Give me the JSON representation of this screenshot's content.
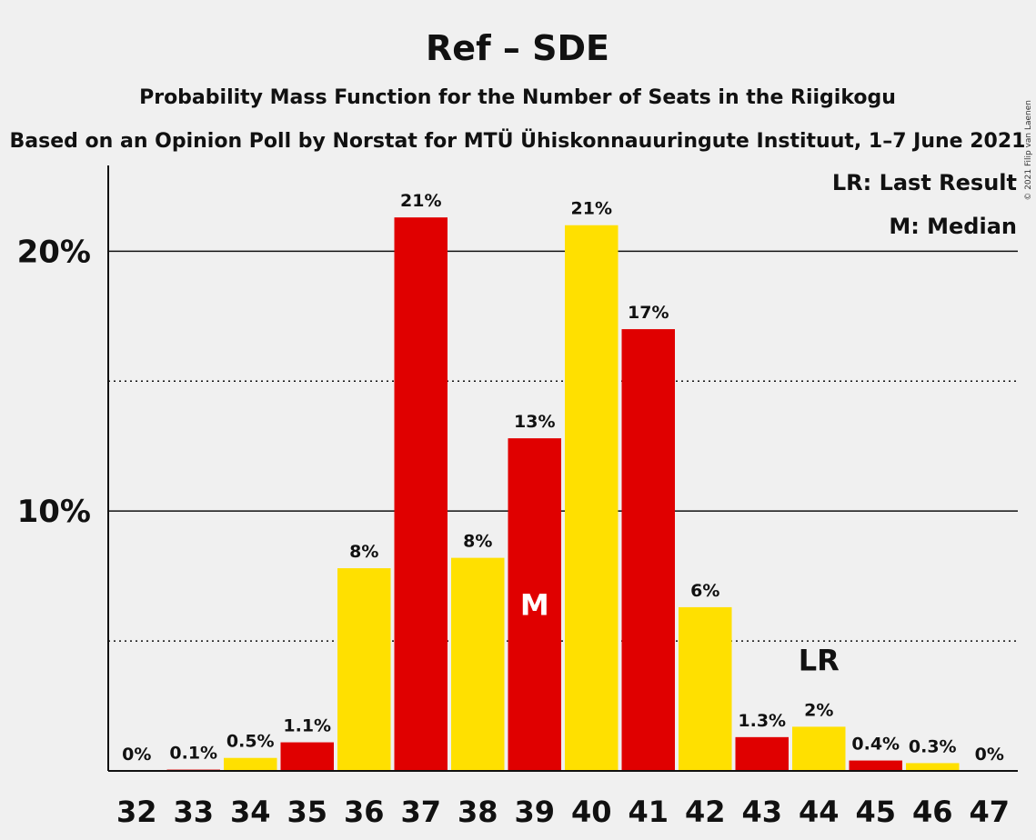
{
  "copyright": "© 2021 Filip van Laenen",
  "chart_data": {
    "type": "bar",
    "title": "Ref – SDE",
    "subtitle": "Probability Mass Function for the Number of Seats in the Riigikogu",
    "subtitle2": "Based on an Opinion Poll by Norstat for MTÜ Ühiskonnauuringute Instituut, 1–7 June 2021",
    "legend": [
      "LR: Last Result",
      "M: Median"
    ],
    "legend_position": "top-right",
    "ytick_labels": [
      "10%",
      "20%"
    ],
    "ylim": [
      0,
      23.3
    ],
    "categories": [
      "32",
      "33",
      "34",
      "35",
      "36",
      "37",
      "38",
      "39",
      "40",
      "41",
      "42",
      "43",
      "44",
      "45",
      "46",
      "47"
    ],
    "values": [
      0,
      0.05,
      0.5,
      1.1,
      7.8,
      21.3,
      8.2,
      12.8,
      21.0,
      17.0,
      6.3,
      1.3,
      1.7,
      0.4,
      0.3,
      0
    ],
    "data_labels": [
      "0%",
      "0.1%",
      "0.5%",
      "1.1%",
      "8%",
      "21%",
      "8%",
      "13%",
      "21%",
      "17%",
      "6%",
      "1.3%",
      "2%",
      "0.4%",
      "0.3%",
      "0%"
    ],
    "colors": [
      "#e00000",
      "#e00000",
      "#ffe000",
      "#e00000",
      "#ffe000",
      "#e00000",
      "#ffe000",
      "#e00000",
      "#ffe000",
      "#e00000",
      "#ffe000",
      "#e00000",
      "#ffe000",
      "#e00000",
      "#ffe000",
      "#e00000"
    ],
    "median_seat": "39",
    "median_marker": "M",
    "last_result_seat": "44",
    "last_result_marker": "LR",
    "grid": {
      "major": [
        10,
        20
      ],
      "minor": [
        5,
        15
      ]
    }
  }
}
